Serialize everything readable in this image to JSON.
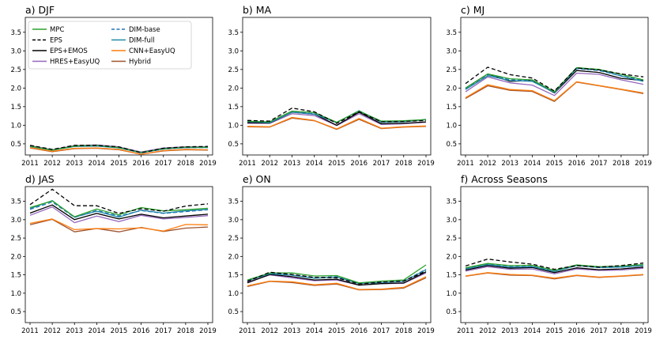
{
  "figure": {
    "legend_location": "top-left of panel a",
    "legend": [
      {
        "name": "MPC",
        "color": "#2ca02c",
        "dash": "solid"
      },
      {
        "name": "EPS",
        "color": "#000000",
        "dash": "dashed"
      },
      {
        "name": "EPS+EMOS",
        "color": "#000000",
        "dash": "solid"
      },
      {
        "name": "HRES+EasyUQ",
        "color": "#9467bd",
        "dash": "solid"
      },
      {
        "name": "DIM-base",
        "color": "#1f77b4",
        "dash": "dashed"
      },
      {
        "name": "DIM-full",
        "color": "#1f8aa6",
        "dash": "solid"
      },
      {
        "name": "CNN+EasyUQ",
        "color": "#ff7f0e",
        "dash": "solid"
      },
      {
        "name": "Hybrid",
        "color": "#a0522d",
        "dash": "solid"
      }
    ]
  },
  "chart_data": [
    {
      "type": "line",
      "title": "a) DJF",
      "x": [
        "2011",
        "2012",
        "2013",
        "2014",
        "2015",
        "2016",
        "2017",
        "2018",
        "2019"
      ],
      "ylim": [
        0.2,
        3.9
      ],
      "yticks": [
        "0.5",
        "1.0",
        "1.5",
        "2.0",
        "2.5",
        "3.0",
        "3.5"
      ],
      "grid": false,
      "series": [
        {
          "name": "MPC",
          "values": [
            0.44,
            0.33,
            0.44,
            0.46,
            0.4,
            0.27,
            0.37,
            0.41,
            0.41
          ]
        },
        {
          "name": "EPS",
          "values": [
            0.46,
            0.35,
            0.46,
            0.46,
            0.42,
            0.26,
            0.38,
            0.42,
            0.43
          ]
        },
        {
          "name": "EPS+EMOS",
          "values": [
            0.44,
            0.33,
            0.44,
            0.45,
            0.4,
            0.26,
            0.37,
            0.4,
            0.41
          ]
        },
        {
          "name": "HRES+EasyUQ",
          "values": [
            0.45,
            0.34,
            0.45,
            0.47,
            0.42,
            0.28,
            0.39,
            0.42,
            0.42
          ]
        },
        {
          "name": "DIM-base",
          "values": [
            0.43,
            0.33,
            0.43,
            0.45,
            0.4,
            0.26,
            0.36,
            0.4,
            0.4
          ]
        },
        {
          "name": "DIM-full",
          "values": [
            0.43,
            0.33,
            0.43,
            0.44,
            0.39,
            0.26,
            0.36,
            0.4,
            0.4
          ]
        },
        {
          "name": "CNN+EasyUQ",
          "values": [
            0.4,
            0.3,
            0.38,
            0.39,
            0.35,
            0.22,
            0.32,
            0.35,
            0.34
          ]
        },
        {
          "name": "Hybrid",
          "values": [
            0.39,
            0.29,
            0.37,
            0.38,
            0.34,
            0.22,
            0.31,
            0.34,
            0.33
          ]
        }
      ]
    },
    {
      "type": "line",
      "title": "b) MA",
      "x": [
        "2011",
        "2012",
        "2013",
        "2014",
        "2015",
        "2016",
        "2017",
        "2018",
        "2019"
      ],
      "ylim": [
        0.2,
        3.9
      ],
      "yticks": [
        "0.5",
        "1.0",
        "1.5",
        "2.0",
        "2.5",
        "3.0",
        "3.5"
      ],
      "grid": false,
      "series": [
        {
          "name": "MPC",
          "values": [
            1.11,
            1.09,
            1.38,
            1.34,
            1.08,
            1.38,
            1.11,
            1.12,
            1.15
          ]
        },
        {
          "name": "EPS",
          "values": [
            1.13,
            1.11,
            1.46,
            1.36,
            1.05,
            1.36,
            1.09,
            1.1,
            1.13
          ]
        },
        {
          "name": "EPS+EMOS",
          "values": [
            1.07,
            1.06,
            1.35,
            1.3,
            1.0,
            1.35,
            1.04,
            1.05,
            1.09
          ]
        },
        {
          "name": "HRES+EasyUQ",
          "values": [
            1.05,
            1.05,
            1.31,
            1.26,
            0.99,
            1.31,
            1.02,
            1.04,
            1.08
          ]
        },
        {
          "name": "DIM-base",
          "values": [
            1.11,
            1.08,
            1.37,
            1.31,
            1.08,
            1.38,
            1.09,
            1.1,
            1.16
          ]
        },
        {
          "name": "DIM-full",
          "values": [
            1.1,
            1.07,
            1.35,
            1.3,
            1.07,
            1.39,
            1.08,
            1.09,
            1.15
          ]
        },
        {
          "name": "CNN+EasyUQ",
          "values": [
            0.97,
            0.96,
            1.21,
            1.13,
            0.9,
            1.18,
            0.92,
            0.96,
            0.98
          ]
        },
        {
          "name": "Hybrid",
          "values": [
            0.96,
            0.95,
            1.19,
            1.12,
            0.89,
            1.16,
            0.91,
            0.95,
            0.97
          ]
        }
      ]
    },
    {
      "type": "line",
      "title": "c) MJ",
      "x": [
        "2011",
        "2012",
        "2013",
        "2014",
        "2015",
        "2016",
        "2017",
        "2018",
        "2019"
      ],
      "ylim": [
        0.2,
        3.9
      ],
      "yticks": [
        "0.5",
        "1.0",
        "1.5",
        "2.0",
        "2.5",
        "3.0",
        "3.5"
      ],
      "grid": false,
      "series": [
        {
          "name": "MPC",
          "values": [
            2.0,
            2.38,
            2.25,
            2.22,
            1.9,
            2.55,
            2.5,
            2.37,
            2.22
          ]
        },
        {
          "name": "EPS",
          "values": [
            2.12,
            2.56,
            2.36,
            2.27,
            1.92,
            2.54,
            2.49,
            2.38,
            2.3
          ]
        },
        {
          "name": "EPS+EMOS",
          "values": [
            2.0,
            2.38,
            2.18,
            2.2,
            1.87,
            2.47,
            2.42,
            2.26,
            2.2
          ]
        },
        {
          "name": "HRES+EasyUQ",
          "values": [
            1.9,
            2.3,
            2.14,
            2.08,
            1.8,
            2.4,
            2.37,
            2.22,
            2.1
          ]
        },
        {
          "name": "DIM-base",
          "values": [
            1.98,
            2.36,
            2.22,
            2.2,
            1.9,
            2.52,
            2.47,
            2.33,
            2.2
          ]
        },
        {
          "name": "DIM-full",
          "values": [
            1.96,
            2.33,
            2.2,
            2.18,
            1.88,
            2.53,
            2.49,
            2.32,
            2.18
          ]
        },
        {
          "name": "CNN+EasyUQ",
          "values": [
            1.74,
            2.09,
            1.96,
            1.93,
            1.66,
            2.17,
            2.07,
            1.97,
            1.87
          ]
        },
        {
          "name": "Hybrid",
          "values": [
            1.72,
            2.06,
            1.94,
            1.91,
            1.64,
            2.16,
            2.06,
            1.96,
            1.85
          ]
        }
      ]
    },
    {
      "type": "line",
      "title": "d) JAS",
      "x": [
        "2011",
        "2012",
        "2013",
        "2014",
        "2015",
        "2016",
        "2017",
        "2018",
        "2019"
      ],
      "ylim": [
        0.2,
        3.9
      ],
      "yticks": [
        "0.5",
        "1.0",
        "1.5",
        "2.0",
        "2.5",
        "3.0",
        "3.5"
      ],
      "grid": false,
      "series": [
        {
          "name": "MPC",
          "values": [
            3.33,
            3.51,
            3.08,
            3.29,
            3.13,
            3.33,
            3.24,
            3.27,
            3.31
          ]
        },
        {
          "name": "EPS",
          "values": [
            3.41,
            3.83,
            3.38,
            3.38,
            3.17,
            3.3,
            3.23,
            3.37,
            3.43
          ]
        },
        {
          "name": "EPS+EMOS",
          "values": [
            3.18,
            3.4,
            3.0,
            3.17,
            3.02,
            3.15,
            3.05,
            3.1,
            3.15
          ]
        },
        {
          "name": "HRES+EasyUQ",
          "values": [
            3.12,
            3.35,
            2.92,
            3.1,
            2.95,
            3.12,
            3.02,
            3.06,
            3.11
          ]
        },
        {
          "name": "DIM-base",
          "values": [
            3.28,
            3.48,
            3.06,
            3.25,
            3.1,
            3.25,
            3.17,
            3.22,
            3.27
          ]
        },
        {
          "name": "DIM-full",
          "values": [
            3.3,
            3.52,
            3.07,
            3.23,
            3.07,
            3.26,
            3.18,
            3.24,
            3.28
          ]
        },
        {
          "name": "CNN+EasyUQ",
          "values": [
            2.9,
            3.02,
            2.73,
            2.76,
            2.75,
            2.78,
            2.69,
            2.87,
            2.86
          ]
        },
        {
          "name": "Hybrid",
          "values": [
            2.86,
            3.01,
            2.67,
            2.76,
            2.67,
            2.79,
            2.68,
            2.77,
            2.8
          ]
        }
      ]
    },
    {
      "type": "line",
      "title": "e) ON",
      "x": [
        "2011",
        "2012",
        "2013",
        "2014",
        "2015",
        "2016",
        "2017",
        "2018",
        "2019"
      ],
      "ylim": [
        0.2,
        3.9
      ],
      "yticks": [
        "0.5",
        "1.0",
        "1.5",
        "2.0",
        "2.5",
        "3.0",
        "3.5"
      ],
      "grid": false,
      "series": [
        {
          "name": "MPC",
          "values": [
            1.36,
            1.55,
            1.55,
            1.47,
            1.48,
            1.28,
            1.33,
            1.36,
            1.77
          ]
        },
        {
          "name": "EPS",
          "values": [
            1.32,
            1.57,
            1.51,
            1.43,
            1.42,
            1.25,
            1.3,
            1.33,
            1.6
          ]
        },
        {
          "name": "EPS+EMOS",
          "values": [
            1.28,
            1.51,
            1.45,
            1.36,
            1.38,
            1.22,
            1.26,
            1.28,
            1.58
          ]
        },
        {
          "name": "HRES+EasyUQ",
          "values": [
            1.3,
            1.5,
            1.42,
            1.34,
            1.36,
            1.22,
            1.26,
            1.27,
            1.55
          ]
        },
        {
          "name": "DIM-base",
          "values": [
            1.33,
            1.54,
            1.5,
            1.42,
            1.45,
            1.27,
            1.3,
            1.33,
            1.65
          ]
        },
        {
          "name": "DIM-full",
          "values": [
            1.34,
            1.53,
            1.49,
            1.41,
            1.44,
            1.26,
            1.29,
            1.32,
            1.64
          ]
        },
        {
          "name": "CNN+EasyUQ",
          "values": [
            1.2,
            1.33,
            1.31,
            1.23,
            1.27,
            1.1,
            1.11,
            1.16,
            1.45
          ]
        },
        {
          "name": "Hybrid",
          "values": [
            1.18,
            1.32,
            1.29,
            1.21,
            1.25,
            1.09,
            1.1,
            1.14,
            1.42
          ]
        }
      ]
    },
    {
      "type": "line",
      "title": "f) Across Seasons",
      "x": [
        "2011",
        "2012",
        "2013",
        "2014",
        "2015",
        "2016",
        "2017",
        "2018",
        "2019"
      ],
      "ylim": [
        0.2,
        3.9
      ],
      "yticks": [
        "0.5",
        "1.0",
        "1.5",
        "2.0",
        "2.5",
        "3.0",
        "3.5"
      ],
      "grid": false,
      "series": [
        {
          "name": "MPC",
          "values": [
            1.69,
            1.81,
            1.75,
            1.76,
            1.62,
            1.77,
            1.72,
            1.74,
            1.78
          ]
        },
        {
          "name": "EPS",
          "values": [
            1.74,
            1.93,
            1.85,
            1.79,
            1.65,
            1.75,
            1.71,
            1.75,
            1.82
          ]
        },
        {
          "name": "EPS+EMOS",
          "values": [
            1.63,
            1.75,
            1.68,
            1.7,
            1.56,
            1.69,
            1.64,
            1.66,
            1.71
          ]
        },
        {
          "name": "HRES+EasyUQ",
          "values": [
            1.6,
            1.72,
            1.65,
            1.66,
            1.53,
            1.66,
            1.62,
            1.63,
            1.68
          ]
        },
        {
          "name": "DIM-base",
          "values": [
            1.67,
            1.79,
            1.72,
            1.73,
            1.6,
            1.75,
            1.7,
            1.71,
            1.75
          ]
        },
        {
          "name": "DIM-full",
          "values": [
            1.66,
            1.78,
            1.71,
            1.72,
            1.59,
            1.75,
            1.7,
            1.71,
            1.75
          ]
        },
        {
          "name": "CNN+EasyUQ",
          "values": [
            1.47,
            1.56,
            1.51,
            1.49,
            1.41,
            1.49,
            1.44,
            1.47,
            1.51
          ]
        },
        {
          "name": "Hybrid",
          "values": [
            1.46,
            1.55,
            1.49,
            1.48,
            1.39,
            1.48,
            1.43,
            1.46,
            1.5
          ]
        }
      ]
    }
  ]
}
